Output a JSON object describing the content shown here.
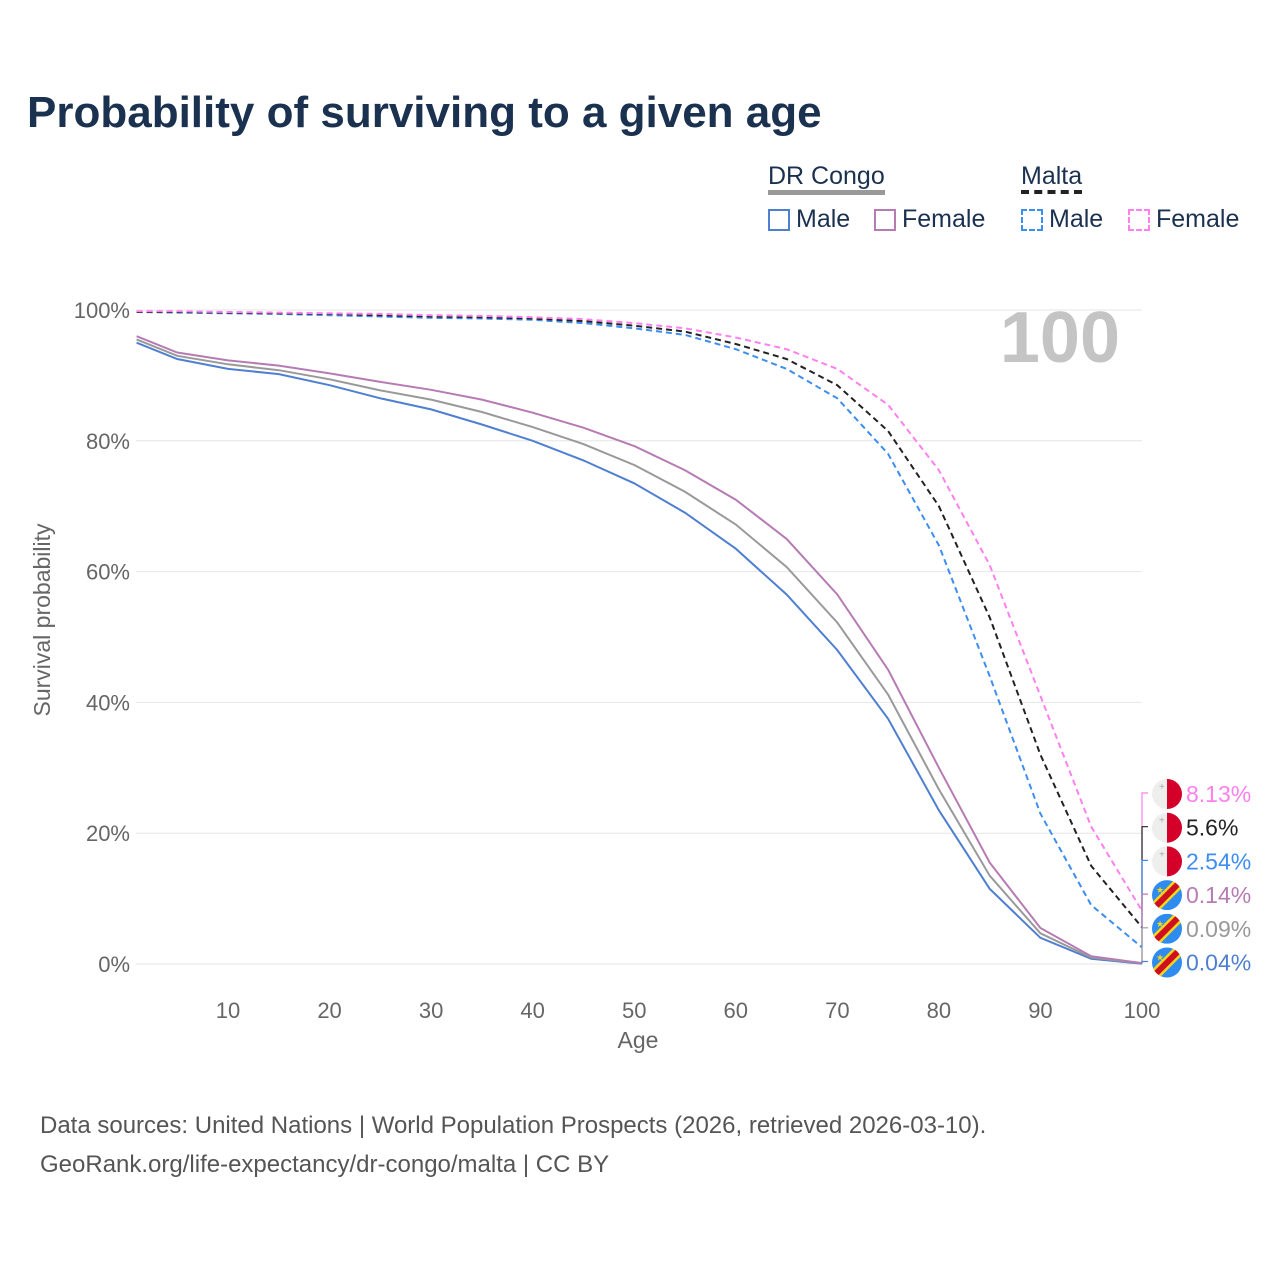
{
  "chart_data": {
    "type": "line",
    "title": "Probability of surviving to a given age",
    "xlabel": "Age",
    "ylabel": "Survival probability",
    "xlim": [
      1,
      100
    ],
    "ylim": [
      0,
      100
    ],
    "xticks": [
      10,
      20,
      30,
      40,
      50,
      60,
      70,
      80,
      90,
      100
    ],
    "yticks": [
      "0%",
      "20%",
      "40%",
      "60%",
      "80%",
      "100%"
    ],
    "year_label": "100",
    "x": [
      1,
      5,
      10,
      15,
      20,
      25,
      30,
      35,
      40,
      45,
      50,
      55,
      60,
      65,
      70,
      75,
      80,
      85,
      90,
      95,
      100
    ],
    "series": [
      {
        "name": "DR Congo Male",
        "color": "#4f7fd0",
        "dashed": false,
        "end_label": "0.04%",
        "flag": "drc",
        "values": [
          95,
          92.5,
          91,
          90.2,
          88.5,
          86.5,
          84.8,
          82.5,
          80,
          77,
          73.5,
          69,
          63.5,
          56.5,
          48,
          37.5,
          23.5,
          11.5,
          4,
          0.8,
          0.04
        ]
      },
      {
        "name": "DR Congo Total",
        "color": "#999999",
        "dashed": false,
        "end_label": "0.09%",
        "flag": "drc",
        "values": [
          95.5,
          93,
          91.7,
          90.8,
          89.4,
          87.7,
          86.3,
          84.4,
          82.1,
          79.5,
          76.3,
          72.2,
          67.2,
          60.7,
          52.2,
          41.2,
          26.7,
          13.5,
          4.7,
          1,
          0.09
        ]
      },
      {
        "name": "DR Congo Female",
        "color": "#b77bb4",
        "dashed": false,
        "end_label": "0.14%",
        "flag": "drc",
        "values": [
          96,
          93.5,
          92.3,
          91.5,
          90.3,
          89,
          87.8,
          86.3,
          84.3,
          82,
          79.2,
          75.5,
          71,
          65,
          56.5,
          45,
          30,
          15.5,
          5.5,
          1.2,
          0.14
        ]
      },
      {
        "name": "Malta Male",
        "color": "#3d8ef0",
        "dashed": true,
        "end_label": "2.54%",
        "flag": "malta",
        "values": [
          99.7,
          99.6,
          99.5,
          99.4,
          99.2,
          99,
          98.8,
          98.7,
          98.5,
          98,
          97.2,
          96.2,
          94,
          91,
          86.5,
          78,
          64,
          44,
          23,
          9,
          2.54
        ]
      },
      {
        "name": "Malta Total",
        "color": "#222222",
        "dashed": true,
        "end_label": "5.6%",
        "flag": "malta",
        "values": [
          99.7,
          99.7,
          99.6,
          99.5,
          99.4,
          99.2,
          99,
          98.9,
          98.7,
          98.3,
          97.6,
          96.7,
          94.8,
          92.5,
          88.5,
          81.5,
          70,
          53,
          32,
          15,
          5.6
        ]
      },
      {
        "name": "Malta Female",
        "color": "#ff80ee",
        "dashed": true,
        "end_label": "8.13%",
        "flag": "malta",
        "values": [
          99.8,
          99.8,
          99.7,
          99.6,
          99.5,
          99.4,
          99.2,
          99.1,
          98.9,
          98.6,
          98,
          97.2,
          95.8,
          94,
          91,
          85.5,
          75.5,
          61,
          41,
          21,
          8.13
        ]
      }
    ]
  },
  "legend": {
    "group1": "DR Congo",
    "group2": "Malta",
    "male": "Male",
    "female": "Female"
  },
  "footer": {
    "line1": "Data sources: United Nations | World Population Prospects (2026, retrieved 2026-03-10).",
    "line2": "GeoRank.org/life-expectancy/dr-congo/malta | CC BY"
  }
}
